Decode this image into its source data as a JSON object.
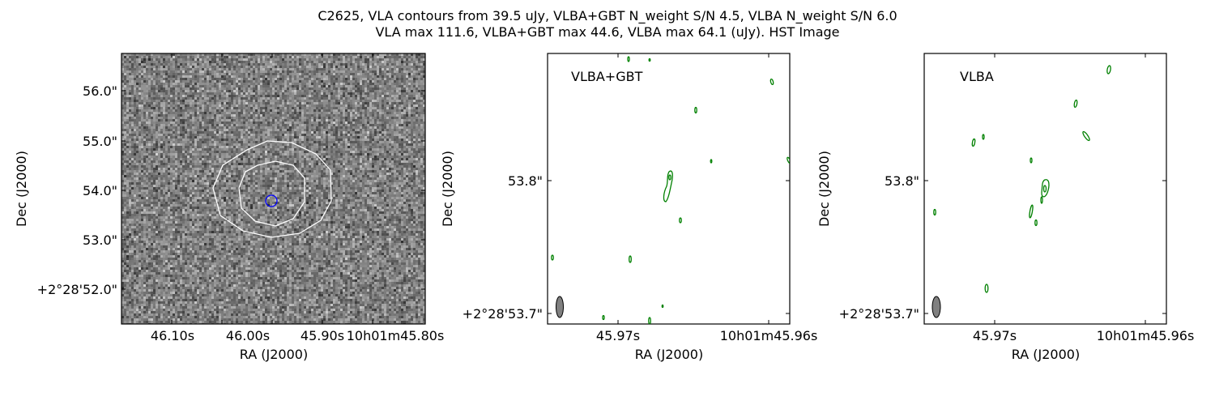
{
  "figure": {
    "title_line1": "C2625, VLA contours from 39.5 uJy, VLBA+GBT N_weight S/N 4.5, VLBA N_weight S/N 6.0",
    "title_line2": "VLA max 111.6, VLBA+GBT max 44.6, VLBA max 64.1 (uJy). HST Image"
  },
  "colors": {
    "vla_contour": "#ffffff",
    "source_marker": "#0000ff",
    "vlbi_contour": "#008000",
    "beam_fill": "#808080"
  },
  "chart_data": [
    {
      "type": "heatmap",
      "panel": "HST image with VLA contours",
      "xlabel": "RA (J2000)",
      "ylabel": "Dec (J2000)",
      "x_ticks": [
        "46.10s",
        "46.00s",
        "45.90s",
        "10h01m45.80s"
      ],
      "y_ticks": [
        "56.0\"",
        "55.0\"",
        "54.0\"",
        "53.0\"",
        "+2°28'52.0\""
      ],
      "colormap": "gray",
      "contour_color": "white",
      "contour_levels": 2,
      "marker": "blue circle at source position"
    },
    {
      "type": "contour",
      "panel_label": "VLBA+GBT",
      "xlabel": "RA (J2000)",
      "ylabel": "Dec (J2000)",
      "x_ticks": [
        "45.97s",
        "10h01m45.96s"
      ],
      "y_ticks": [
        "53.8\"",
        "+2°28'53.7\""
      ],
      "contour_color": "green",
      "beam": "grey ellipse, lower-left"
    },
    {
      "type": "contour",
      "panel_label": "VLBA",
      "xlabel": "RA (J2000)",
      "ylabel": "Dec (J2000)",
      "x_ticks": [
        "45.97s",
        "10h01m45.96s"
      ],
      "y_ticks": [
        "53.8\"",
        "+2°28'53.7\""
      ],
      "contour_color": "green",
      "beam": "grey ellipse, lower-left"
    }
  ]
}
